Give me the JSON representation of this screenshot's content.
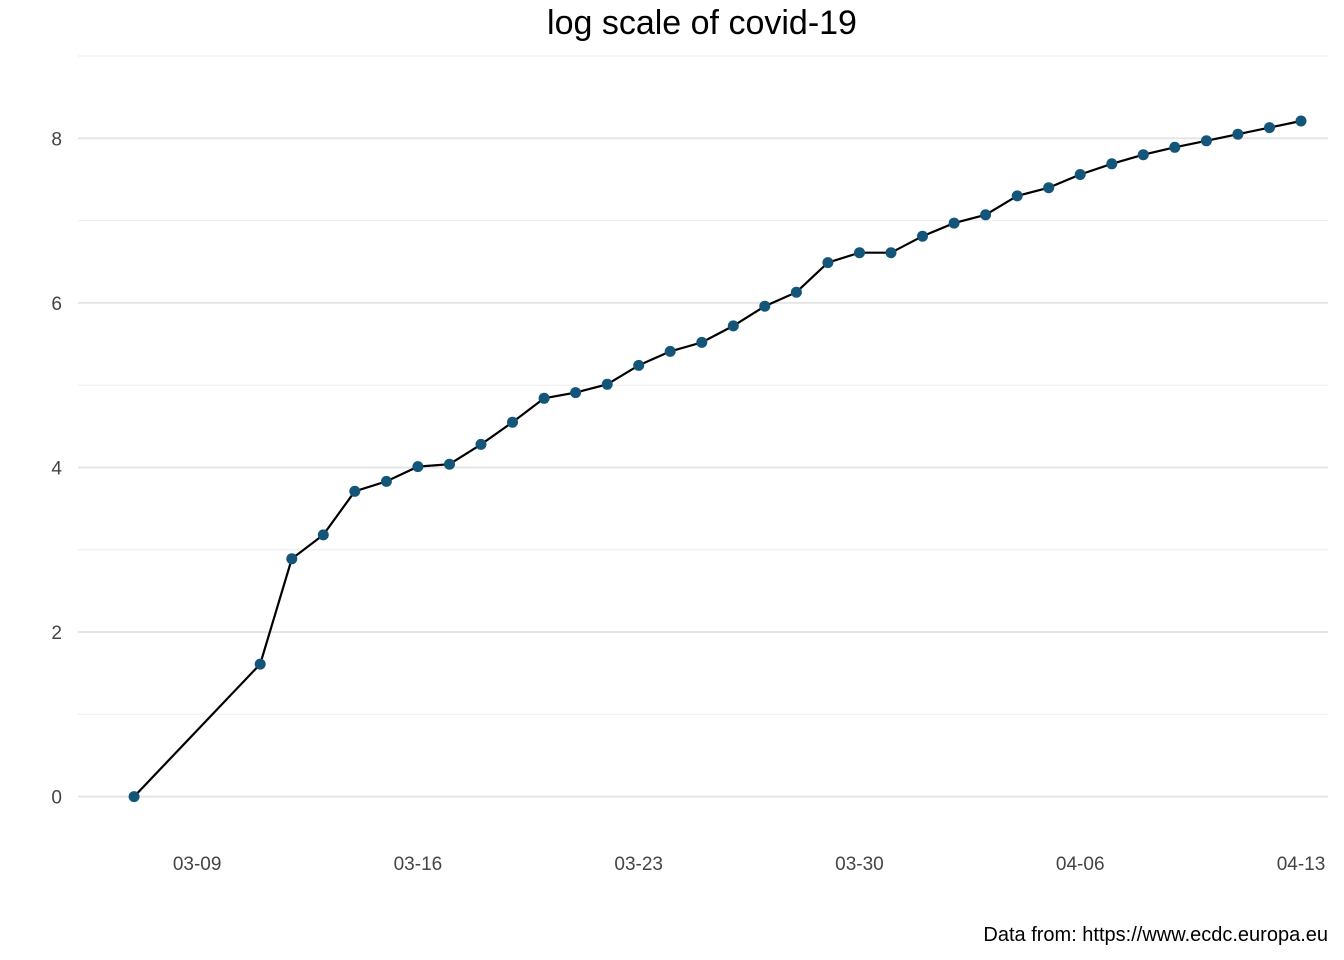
{
  "chart_data": {
    "type": "line",
    "title": "log scale of covid-19",
    "xlabel": "",
    "ylabel": "",
    "caption": "Data from: https://www.ecdc.europa.eu",
    "x_ticks": [
      "03-09",
      "03-16",
      "03-23",
      "03-30",
      "04-06",
      "04-13"
    ],
    "y_ticks": [
      0,
      2,
      4,
      6,
      8
    ],
    "xlim": [
      "03-05",
      "04-13"
    ],
    "ylim": [
      -0.6,
      9.0
    ],
    "grid": true,
    "legend": "none",
    "colors": {
      "points": "#14567a",
      "line": "#000000",
      "grid": "#e5e5e5"
    },
    "series": [
      {
        "x": [
          "03-07",
          "03-11",
          "03-12",
          "03-13",
          "03-14",
          "03-15",
          "03-16",
          "03-17",
          "03-18",
          "03-19",
          "03-20",
          "03-21",
          "03-22",
          "03-23",
          "03-24",
          "03-25",
          "03-26",
          "03-27",
          "03-28",
          "03-29",
          "03-30",
          "03-31",
          "04-01",
          "04-02",
          "04-03",
          "04-04",
          "04-05",
          "04-06",
          "04-07",
          "04-08",
          "04-09",
          "04-10",
          "04-11",
          "04-12",
          "04-13"
        ],
        "y": [
          0.0,
          1.61,
          2.89,
          3.18,
          3.71,
          3.83,
          4.01,
          4.04,
          4.28,
          4.55,
          4.84,
          4.91,
          5.01,
          5.24,
          5.41,
          5.52,
          5.72,
          5.96,
          6.13,
          6.49,
          6.61,
          6.61,
          6.81,
          6.97,
          7.07,
          7.3,
          7.4,
          7.56,
          7.69,
          7.8,
          7.89,
          7.97,
          8.05,
          8.13,
          8.21
        ]
      }
    ]
  }
}
